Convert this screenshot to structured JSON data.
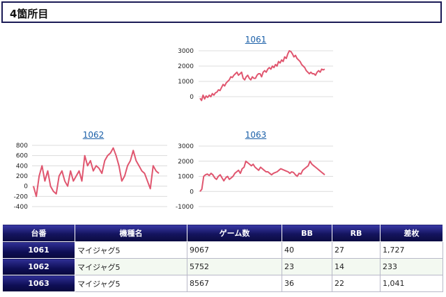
{
  "header": {
    "title": "4箇所目"
  },
  "chart_data": [
    {
      "type": "line",
      "title": "1061",
      "color": "#e0566f",
      "yticks": [
        3000,
        2000,
        1000,
        0
      ],
      "ylim": [
        -500,
        3200
      ],
      "values": [
        -100,
        -250,
        100,
        -150,
        50,
        -50,
        100,
        0,
        200,
        100,
        250,
        300,
        450,
        400,
        600,
        800,
        700,
        900,
        1000,
        1100,
        1300,
        1250,
        1400,
        1500,
        1600,
        1400,
        1500,
        1600,
        1200,
        1100,
        1300,
        1400,
        1200,
        1100,
        1300,
        1200,
        1200,
        1400,
        1500,
        1500,
        1300,
        1600,
        1700,
        1600,
        1800,
        1900,
        1800,
        2000,
        1900,
        2100,
        2000,
        2300,
        2200,
        2400,
        2300,
        2600,
        2500,
        2800,
        3000,
        2950,
        2800,
        2600,
        2700,
        2500,
        2400,
        2300,
        2100,
        2000,
        1900,
        1700,
        1600,
        1500,
        1600,
        1500,
        1500,
        1400,
        1600,
        1700,
        1600,
        1800,
        1750,
        1800
      ]
    },
    {
      "type": "line",
      "title": "1062",
      "color": "#e0566f",
      "yticks": [
        800,
        600,
        400,
        200,
        0,
        -200,
        -400
      ],
      "ylim": [
        -400,
        800
      ],
      "values": [
        0,
        -200,
        200,
        400,
        100,
        300,
        0,
        -100,
        -150,
        200,
        300,
        100,
        0,
        300,
        100,
        200,
        300,
        100,
        600,
        400,
        500,
        300,
        400,
        350,
        250,
        500,
        600,
        650,
        750,
        600,
        400,
        100,
        200,
        400,
        500,
        700,
        500,
        400,
        300,
        250,
        100,
        -50,
        400,
        300,
        250
      ]
    },
    {
      "type": "line",
      "title": "1063",
      "color": "#e0566f",
      "yticks": [
        3000,
        2000,
        1000,
        0,
        -1000
      ],
      "ylim": [
        -1000,
        3000
      ],
      "values": [
        0,
        150,
        1000,
        1100,
        1150,
        1050,
        1200,
        1100,
        900,
        800,
        1000,
        1100,
        900,
        700,
        900,
        1000,
        800,
        900,
        1000,
        1200,
        1300,
        1400,
        1200,
        1500,
        1600,
        2000,
        1900,
        1800,
        1700,
        1800,
        1600,
        1500,
        1400,
        1600,
        1500,
        1400,
        1300,
        1300,
        1200,
        1100,
        1200,
        1250,
        1300,
        1400,
        1500,
        1450,
        1400,
        1350,
        1300,
        1200,
        1300,
        1250,
        1100,
        1000,
        1200,
        1150,
        1400,
        1500,
        1600,
        1700,
        2000,
        1800,
        1700,
        1600,
        1500,
        1400,
        1300,
        1200,
        1100
      ]
    }
  ],
  "table": {
    "headers": [
      "台番",
      "機種名",
      "ゲーム数",
      "BB",
      "RB",
      "差枚"
    ],
    "rows": [
      [
        "1061",
        "マイジャグ5",
        "9067",
        "40",
        "27",
        "1,727"
      ],
      [
        "1062",
        "マイジャグ5",
        "5752",
        "23",
        "14",
        "233"
      ],
      [
        "1063",
        "マイジャグ5",
        "8567",
        "36",
        "22",
        "1,041"
      ]
    ]
  }
}
